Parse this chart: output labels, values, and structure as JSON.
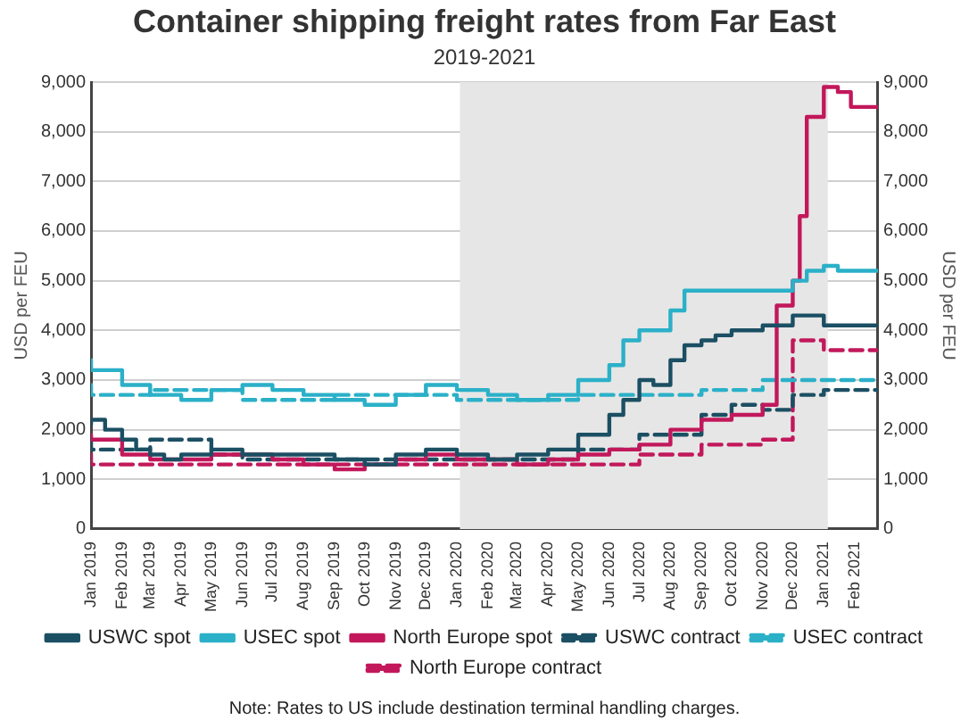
{
  "chart_data": {
    "type": "step",
    "title": "Container shipping freight rates from Far East",
    "subtitle": "2019-2021",
    "ylabel": "USD per FEU",
    "y2label": "USD per FEU",
    "xlim": [
      "2019-01-01",
      "2021-02-24"
    ],
    "xticks": [
      {
        "value": "2019-01",
        "label": "Jan 2019"
      },
      {
        "value": "2019-02",
        "label": "Feb 2019"
      },
      {
        "value": "2019-03",
        "label": "Mar 2019"
      },
      {
        "value": "2019-04",
        "label": "Apr 2019"
      },
      {
        "value": "2019-05",
        "label": "May 2019"
      },
      {
        "value": "2019-06",
        "label": "Jun 2019"
      },
      {
        "value": "2019-07",
        "label": "Jul 2019"
      },
      {
        "value": "2019-08",
        "label": "Aug 2019"
      },
      {
        "value": "2019-09",
        "label": "Sep 2019"
      },
      {
        "value": "2019-10",
        "label": "Oct 2019"
      },
      {
        "value": "2019-11",
        "label": "Nov 2019"
      },
      {
        "value": "2019-12",
        "label": "Dec 2019"
      },
      {
        "value": "2020-01",
        "label": "Jan 2020"
      },
      {
        "value": "2020-02",
        "label": "Feb 2020"
      },
      {
        "value": "2020-03",
        "label": "Mar 2020"
      },
      {
        "value": "2020-04",
        "label": "Apr 2020"
      },
      {
        "value": "2020-05",
        "label": "May 2020"
      },
      {
        "value": "2020-06",
        "label": "Jun 2020"
      },
      {
        "value": "2020-07",
        "label": "Jul 2020"
      },
      {
        "value": "2020-08",
        "label": "Aug 2020"
      },
      {
        "value": "2020-09",
        "label": "Sep 2020"
      },
      {
        "value": "2020-10",
        "label": "Oct 2020"
      },
      {
        "value": "2020-11",
        "label": "Nov 2020"
      },
      {
        "value": "2020-12",
        "label": "Dec 2020"
      },
      {
        "value": "2021-01",
        "label": "Jan 2021"
      },
      {
        "value": "2021-02",
        "label": "Feb 2021"
      }
    ],
    "ylim": [
      0,
      9000
    ],
    "yticks": [
      0,
      {
        "value": 1000,
        "label": "1,000"
      },
      {
        "value": 2000,
        "label": "2,000"
      },
      {
        "value": 3000,
        "label": "3,000"
      },
      {
        "value": 4000,
        "label": "4,000"
      },
      {
        "value": 5000,
        "label": "5,000"
      },
      {
        "value": 6000,
        "label": "6,000"
      },
      {
        "value": 7000,
        "label": "7,000"
      },
      {
        "value": 8000,
        "label": "8,000"
      },
      {
        "value": 9000,
        "label": "9,000"
      }
    ],
    "y2lim": [
      0,
      9000
    ],
    "y2ticks": [
      0,
      {
        "value": 1000,
        "label": "1,000"
      },
      {
        "value": 2000,
        "label": "2,000"
      },
      {
        "value": 3000,
        "label": "3,000"
      },
      {
        "value": 4000,
        "label": "4,000"
      },
      {
        "value": 5000,
        "label": "5,000"
      },
      {
        "value": 6000,
        "label": "6,000"
      },
      {
        "value": 7000,
        "label": "7,000"
      },
      {
        "value": 8000,
        "label": "8,000"
      },
      {
        "value": 9000,
        "label": "9,000"
      }
    ],
    "grid": "y",
    "legend": "bottom",
    "marker": "none",
    "bands": [
      {
        "axis": "x",
        "from": "2020-01-04",
        "to": "2021-01-05",
        "color": "#e6e6e6"
      }
    ],
    "annotations": [
      "Note: Rates to US include destination terminal handling charges."
    ],
    "series": [
      {
        "name": "USWC spot",
        "color": "#1b4f63",
        "line_style": "solid",
        "x": [
          "2019-01-01",
          "2019-01-15",
          "2019-02-01",
          "2019-02-15",
          "2019-03-01",
          "2019-03-15",
          "2019-04-01",
          "2019-05-01",
          "2019-06-01",
          "2019-07-01",
          "2019-08-01",
          "2019-09-01",
          "2019-10-01",
          "2019-11-01",
          "2019-12-01",
          "2020-01-01",
          "2020-02-01",
          "2020-03-01",
          "2020-04-01",
          "2020-05-01",
          "2020-06-01",
          "2020-06-15",
          "2020-07-01",
          "2020-07-15",
          "2020-08-01",
          "2020-08-15",
          "2020-09-01",
          "2020-09-15",
          "2020-10-01",
          "2020-11-01",
          "2020-12-01",
          "2020-12-20",
          "2021-01-01",
          "2021-02-01",
          "2021-02-23"
        ],
        "values": [
          2100,
          2200,
          2000,
          1800,
          1600,
          1500,
          1400,
          1500,
          1600,
          1500,
          1500,
          1500,
          1400,
          1300,
          1500,
          1600,
          1500,
          1400,
          1500,
          1600,
          1900,
          2300,
          2600,
          3000,
          2900,
          3400,
          3700,
          3800,
          3900,
          4000,
          4100,
          4300,
          4300,
          4100,
          4100
        ]
      },
      {
        "name": "USEC spot",
        "color": "#2bb0c8",
        "line_style": "solid",
        "x": [
          "2019-01-01",
          "2019-02-01",
          "2019-03-01",
          "2019-04-01",
          "2019-05-01",
          "2019-06-01",
          "2019-07-01",
          "2019-08-01",
          "2019-09-01",
          "2019-10-01",
          "2019-11-01",
          "2019-12-01",
          "2020-01-01",
          "2020-02-01",
          "2020-03-01",
          "2020-04-01",
          "2020-05-01",
          "2020-06-01",
          "2020-06-15",
          "2020-07-01",
          "2020-08-01",
          "2020-08-15",
          "2020-09-10",
          "2020-10-01",
          "2020-11-01",
          "2020-12-01",
          "2020-12-15",
          "2021-01-01",
          "2021-01-15",
          "2021-02-01",
          "2021-02-23"
        ],
        "values": [
          3400,
          3200,
          2900,
          2700,
          2600,
          2800,
          2900,
          2800,
          2700,
          2600,
          2500,
          2700,
          2900,
          2800,
          2700,
          2600,
          2700,
          3000,
          3300,
          3800,
          4000,
          4400,
          4800,
          4800,
          4800,
          4800,
          5000,
          5200,
          5300,
          5200,
          5200
        ]
      },
      {
        "name": "North Europe spot",
        "color": "#c2185b",
        "line_style": "solid",
        "x": [
          "2019-01-01",
          "2019-02-01",
          "2019-03-01",
          "2019-04-01",
          "2019-05-01",
          "2019-06-01",
          "2019-07-01",
          "2019-08-01",
          "2019-09-01",
          "2019-10-01",
          "2019-11-01",
          "2019-12-01",
          "2020-01-01",
          "2020-02-01",
          "2020-03-01",
          "2020-04-01",
          "2020-05-01",
          "2020-06-01",
          "2020-07-01",
          "2020-08-01",
          "2020-09-01",
          "2020-10-01",
          "2020-11-01",
          "2020-11-15",
          "2020-12-01",
          "2020-12-08",
          "2020-12-15",
          "2021-01-01",
          "2021-01-15",
          "2021-01-28",
          "2021-02-05",
          "2021-02-23"
        ],
        "values": [
          1900,
          1800,
          1500,
          1400,
          1400,
          1500,
          1500,
          1400,
          1300,
          1200,
          1300,
          1400,
          1500,
          1400,
          1400,
          1300,
          1400,
          1500,
          1600,
          1700,
          2000,
          2200,
          2300,
          2500,
          4500,
          5000,
          6300,
          8300,
          8900,
          8800,
          8500,
          8500
        ]
      },
      {
        "name": "USWC contract",
        "color": "#1b4f63",
        "line_style": "dashed",
        "x": [
          "2019-01-01",
          "2019-03-01",
          "2019-05-01",
          "2019-06-01",
          "2019-09-01",
          "2020-01-01",
          "2020-05-01",
          "2020-07-01",
          "2020-09-01",
          "2020-10-01",
          "2020-11-01",
          "2020-12-01",
          "2021-01-01",
          "2021-02-01",
          "2021-02-23"
        ],
        "values": [
          1800,
          1600,
          1800,
          1500,
          1400,
          1400,
          1400,
          1600,
          1900,
          2300,
          2500,
          2400,
          2700,
          2800,
          2800
        ]
      },
      {
        "name": "USEC contract",
        "color": "#2bb0c8",
        "line_style": "dashed",
        "x": [
          "2019-01-01",
          "2019-03-01",
          "2019-06-01",
          "2019-09-01",
          "2020-01-01",
          "2020-05-01",
          "2020-09-01",
          "2020-11-01",
          "2021-01-01",
          "2021-02-01",
          "2021-02-23"
        ],
        "values": [
          2900,
          2700,
          2800,
          2600,
          2700,
          2600,
          2700,
          2800,
          3000,
          3000,
          3000
        ]
      },
      {
        "name": "North Europe contract",
        "color": "#c2185b",
        "line_style": "dashed",
        "x": [
          "2019-01-01",
          "2019-04-01",
          "2020-01-01",
          "2020-07-01",
          "2020-09-01",
          "2020-11-01",
          "2020-12-01",
          "2021-01-01",
          "2021-02-01",
          "2021-02-23"
        ],
        "values": [
          1500,
          1300,
          1300,
          1300,
          1500,
          1700,
          1800,
          3800,
          3600,
          3600
        ]
      }
    ]
  }
}
